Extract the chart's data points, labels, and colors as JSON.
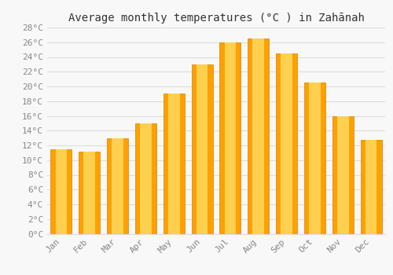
{
  "title": "Average monthly temperatures (°C ) in Zahānah",
  "months": [
    "Jan",
    "Feb",
    "Mar",
    "Apr",
    "May",
    "Jun",
    "Jul",
    "Aug",
    "Sep",
    "Oct",
    "Nov",
    "Dec"
  ],
  "values": [
    11.5,
    11.2,
    13.0,
    15.0,
    19.0,
    23.0,
    26.0,
    26.5,
    24.5,
    20.5,
    16.0,
    12.7
  ],
  "bar_color_light": "#FFD050",
  "bar_color_dark": "#FFA000",
  "bar_edge_color": "#CC8800",
  "background_color": "#F8F8F8",
  "grid_color": "#DDDDDD",
  "ylim": [
    0,
    28
  ],
  "ytick_step": 2,
  "title_fontsize": 10,
  "tick_fontsize": 8,
  "tick_color": "#888888",
  "label_color": "#888888",
  "title_color": "#333333"
}
